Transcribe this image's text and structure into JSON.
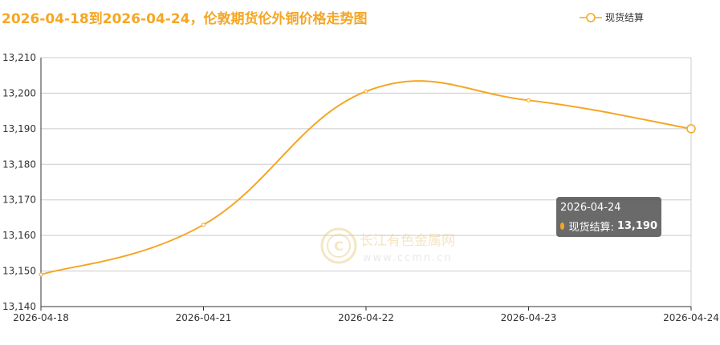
{
  "chart_data": {
    "type": "line",
    "title": "2026-04-18到2026-04-24，伦敦期货伦外铜价格走势图",
    "categories": [
      "2026-04-18",
      "2026-04-21",
      "2026-04-22",
      "2026-04-23",
      "2026-04-24"
    ],
    "series": [
      {
        "name": "现货结算",
        "values": [
          13149,
          13163,
          13200.5,
          13198,
          13190
        ]
      }
    ],
    "ylim": [
      13140,
      13210
    ],
    "yticks": [
      13140,
      13150,
      13160,
      13170,
      13180,
      13190,
      13200,
      13210
    ],
    "ytick_labels": [
      "13,140",
      "13,150",
      "13,160",
      "13,170",
      "13,180",
      "13,190",
      "13,200",
      "13,210"
    ],
    "grid": true,
    "legend_position": "top-right",
    "colors": {
      "line": "#f5a623",
      "grid": "#cccccc",
      "axis": "#333333"
    }
  },
  "tooltip": {
    "date": "2026-04-24",
    "series_label": "现货结算:",
    "value": "13,190"
  },
  "watermark": {
    "name": "长江有色金属网",
    "url": "www.ccmn.cn"
  }
}
